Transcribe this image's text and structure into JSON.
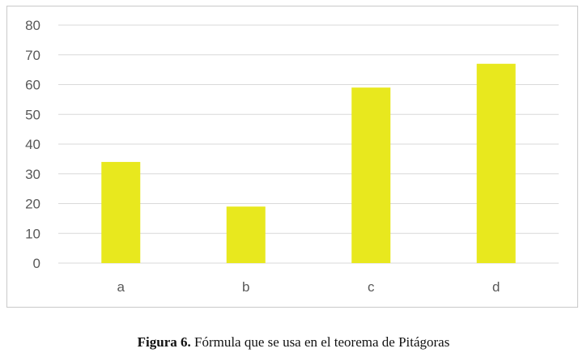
{
  "chart_data": {
    "type": "bar",
    "categories": [
      "a",
      "b",
      "c",
      "d"
    ],
    "values": [
      34,
      19,
      59,
      67
    ],
    "title": "",
    "xlabel": "",
    "ylabel": "",
    "ylim": [
      0,
      80
    ],
    "yticks": [
      0,
      10,
      20,
      30,
      40,
      50,
      60,
      70,
      80
    ],
    "grid": true,
    "bar_color": "#e8e81e",
    "grid_color": "#d9d9d9"
  },
  "caption": {
    "label": "Figura 6.",
    "text": " Fórmula que se usa en el teorema de Pitágoras"
  }
}
